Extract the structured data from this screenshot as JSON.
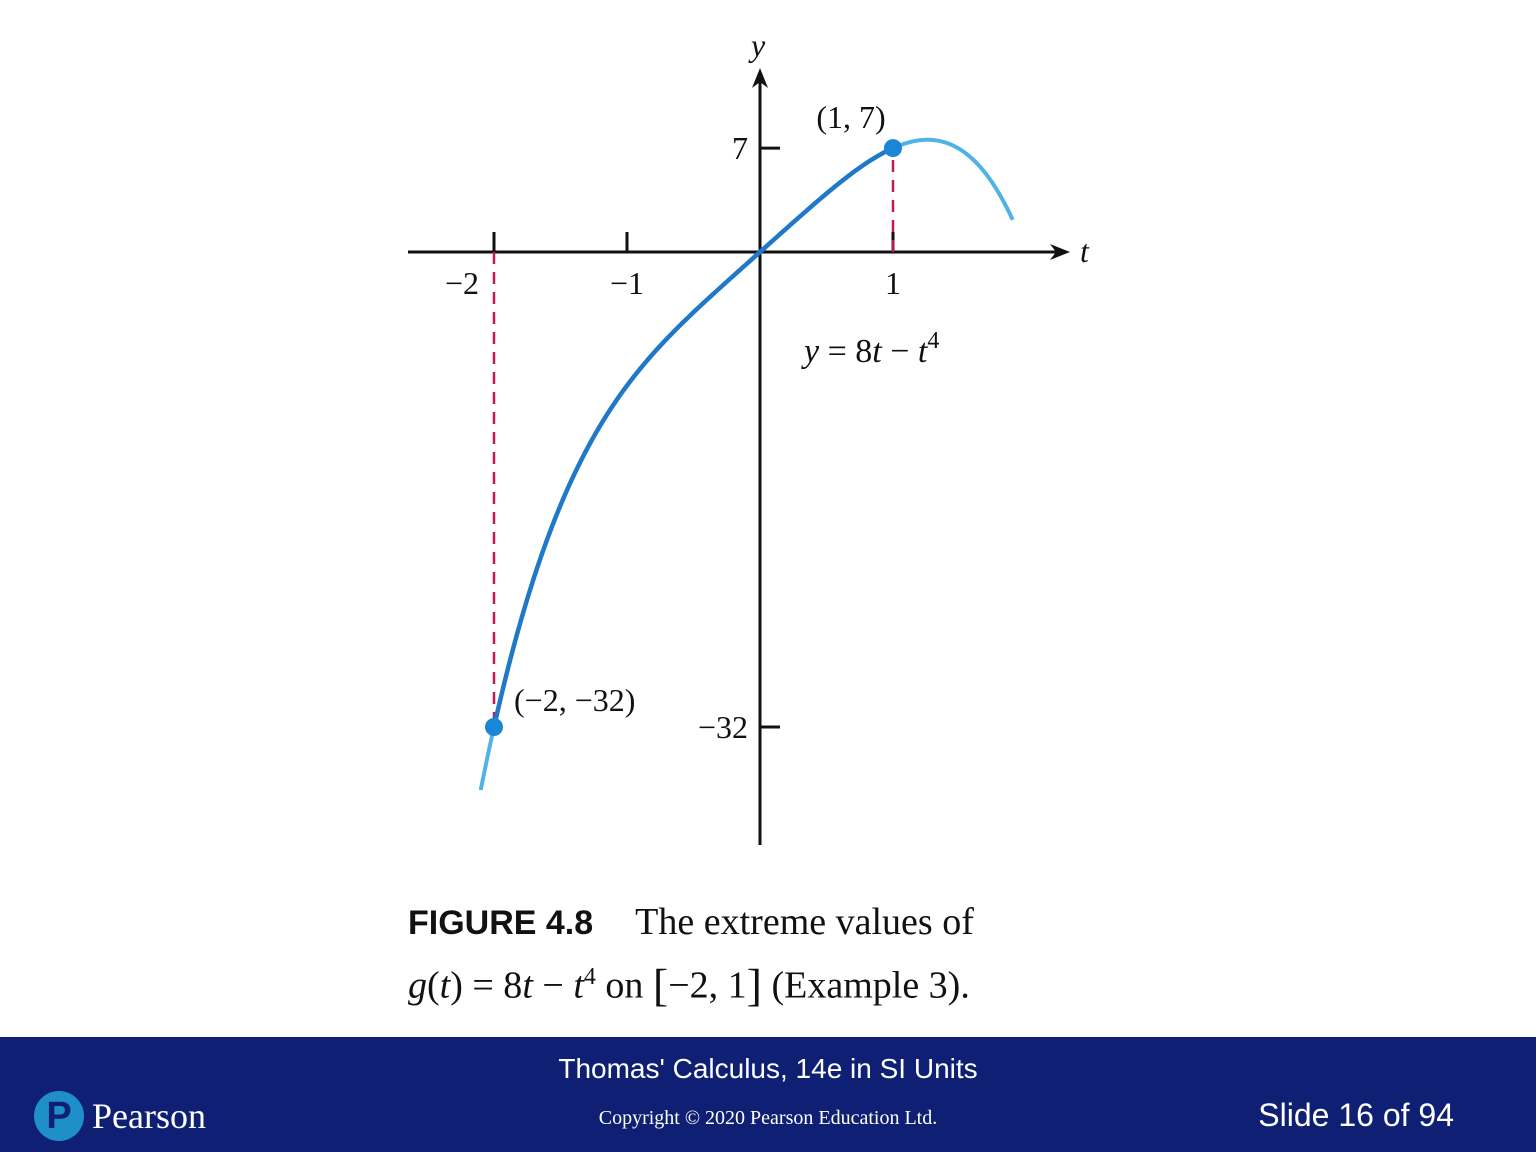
{
  "chart_data": {
    "type": "line",
    "function": "y = 8t − t^4",
    "x_axis_label": "t",
    "y_axis_label": "y",
    "x_ticks": [
      "−2",
      "−1",
      "1"
    ],
    "x_tick_values": [
      -2,
      -1,
      1
    ],
    "y_ticks": [
      "7",
      "−32"
    ],
    "y_tick_values": [
      7,
      -32
    ],
    "xlim": [
      -2.2,
      2.0
    ],
    "ylim": [
      -40,
      8.6
    ],
    "curve_domain": [
      -2.1,
      1.9
    ],
    "highlight_domain": [
      -2,
      1
    ],
    "points": [
      {
        "x": 1,
        "y": 7,
        "label": "(1, 7)"
      },
      {
        "x": -2,
        "y": -32,
        "label": "(−2, −32)"
      }
    ],
    "curve_label": {
      "y": "y",
      "eq": " = 8",
      "t1": "t",
      "minus": " − ",
      "t2": "t",
      "exp": "4"
    },
    "colors": {
      "curve_dark": "#1f78c8",
      "curve_light": "#4fb3e6",
      "dashed": "#c2185b",
      "point": "#1a86d6",
      "axis": "#111111"
    }
  },
  "caption": {
    "figure": "FIGURE 4.8",
    "line1": "The extreme values of",
    "g": "g",
    "t_arg": "t",
    "eq": " = 8",
    "t": "t",
    "minus": " − ",
    "t2": "t",
    "exp": "4",
    "on": " on ",
    "interval": "−2, 1",
    "example": " (Example 3)."
  },
  "footer": {
    "book": "Thomas' Calculus, 14e in SI Units",
    "copyright": "Copyright © 2020 Pearson Education Ltd.",
    "slide": "Slide 16 of 94",
    "logo_mark": "P",
    "logo_text": "Pearson"
  }
}
